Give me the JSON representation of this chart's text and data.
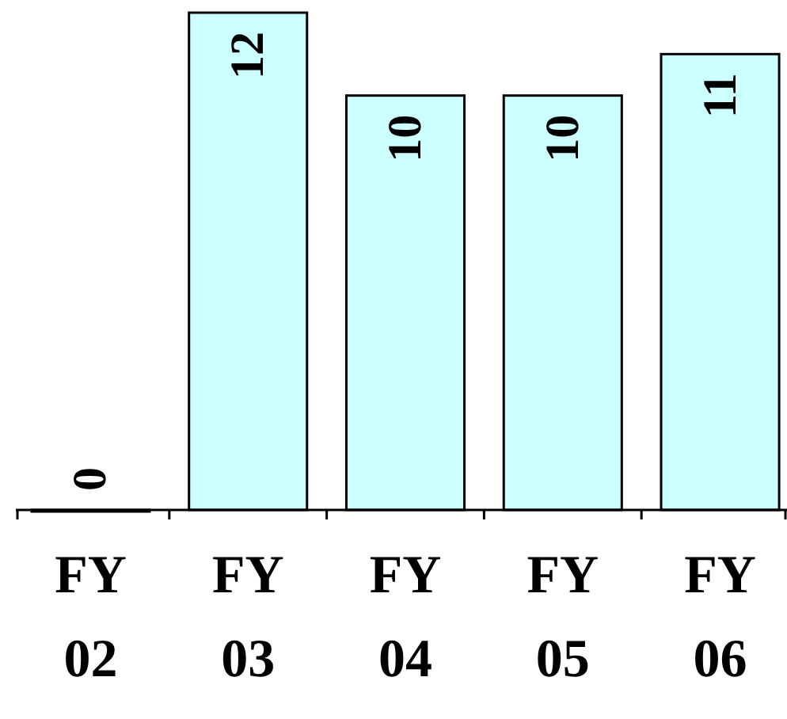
{
  "chart_data": {
    "type": "bar",
    "categories": [
      "FY 02",
      "FY 03",
      "FY 04",
      "FY 05",
      "FY 06"
    ],
    "values": [
      0,
      12,
      10,
      10,
      11
    ],
    "color": "#ccffff",
    "data_labels": true
  }
}
